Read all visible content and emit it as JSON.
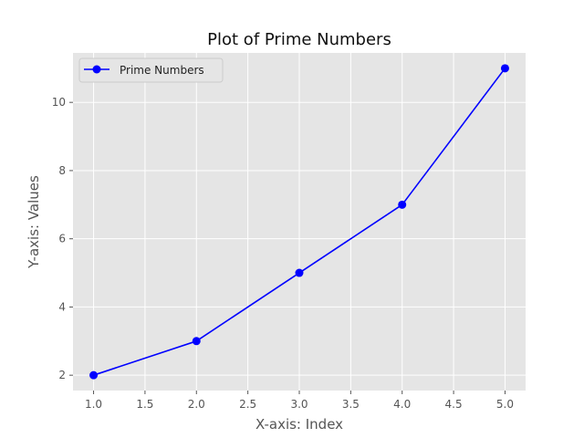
{
  "chart_data": {
    "type": "line",
    "title": "Plot of Prime Numbers",
    "xlabel": "X-axis: Index",
    "ylabel": "Y-axis: Values",
    "x": [
      1,
      2,
      3,
      4,
      5
    ],
    "series": [
      {
        "name": "Prime Numbers",
        "values": [
          2,
          3,
          5,
          7,
          11
        ],
        "color": "#0000ff",
        "marker": "circle"
      }
    ],
    "xlim": [
      0.8,
      5.2
    ],
    "ylim": [
      1.55,
      11.45
    ],
    "xticks": [
      1.0,
      1.5,
      2.0,
      2.5,
      3.0,
      3.5,
      4.0,
      4.5,
      5.0
    ],
    "xtick_labels": [
      "1.0",
      "1.5",
      "2.0",
      "2.5",
      "3.0",
      "3.5",
      "4.0",
      "4.5",
      "5.0"
    ],
    "yticks": [
      2,
      4,
      6,
      8,
      10
    ],
    "ytick_labels": [
      "2",
      "4",
      "6",
      "8",
      "10"
    ],
    "grid": true,
    "legend_position": "top-left",
    "style": "ggplot",
    "colors": {
      "plot_background": "#e5e5e5",
      "grid": "#ffffff",
      "tick_label": "#555555",
      "title": "#111111"
    }
  }
}
